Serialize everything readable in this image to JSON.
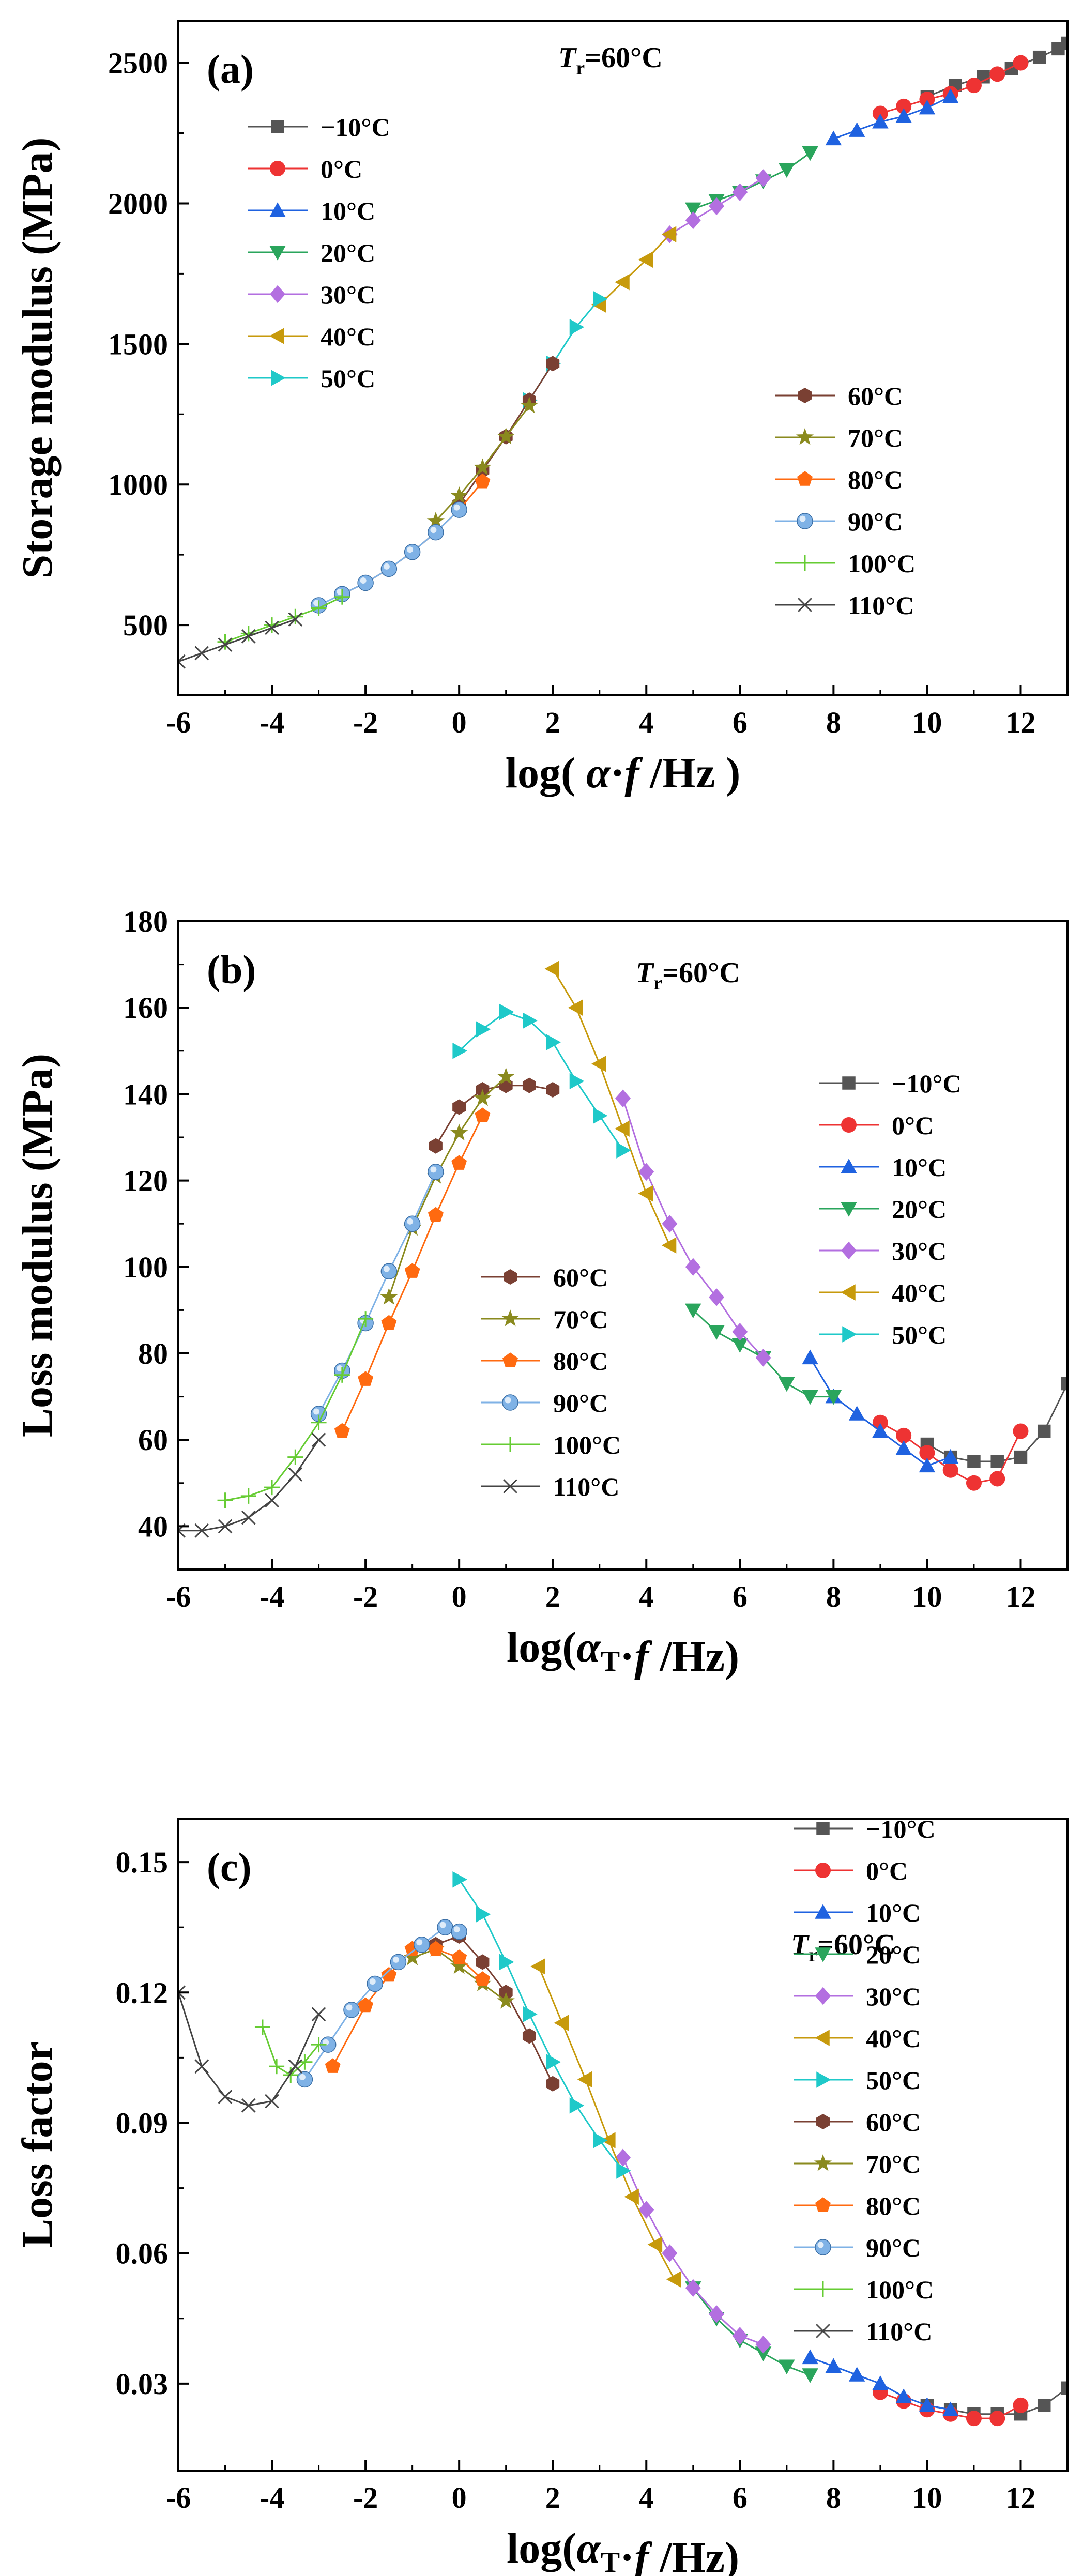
{
  "panels": [
    {
      "panel_label": "(a)",
      "ref_temp": {
        "sym": "T",
        "sub": "r",
        "rest": "=60°C"
      },
      "ylabel": "Storage modulus (MPa)",
      "xlabel": {
        "pre": "log( ",
        "greek": "α",
        "sub": "",
        "mid": "·",
        "ital": "f",
        "post": " /Hz )"
      },
      "x_ticks": [
        "-6",
        "-4",
        "-2",
        "0",
        "2",
        "4",
        "6",
        "8",
        "10",
        "12"
      ],
      "y_ticks": [
        "500",
        "1000",
        "1500",
        "2000",
        "2500"
      ],
      "legend_groups": [
        {
          "pos": "upper-left",
          "entries": [
            "−10°C",
            "0°C",
            "10°C",
            "20°C",
            "30°C",
            "40°C",
            "50°C"
          ]
        },
        {
          "pos": "center-right",
          "entries": [
            "60°C",
            "70°C",
            "80°C",
            "90°C",
            "100°C",
            "110°C"
          ]
        }
      ]
    },
    {
      "panel_label": "(b)",
      "ref_temp": {
        "sym": "T",
        "sub": "r",
        "rest": "=60°C"
      },
      "ylabel": "Loss modulus (MPa)",
      "xlabel": {
        "pre": "log(",
        "greek": "α",
        "sub": "T",
        "mid": "·",
        "ital": "f",
        "post": " /Hz)"
      },
      "x_ticks": [
        "-6",
        "-4",
        "-2",
        "0",
        "2",
        "4",
        "6",
        "8",
        "10",
        "12"
      ],
      "y_ticks": [
        "40",
        "60",
        "80",
        "100",
        "120",
        "140",
        "160",
        "180"
      ],
      "legend_groups": [
        {
          "pos": "upper-right",
          "entries": [
            "−10°C",
            "0°C",
            "10°C",
            "20°C",
            "30°C",
            "40°C",
            "50°C"
          ]
        },
        {
          "pos": "lower-center",
          "entries": [
            "60°C",
            "70°C",
            "80°C",
            "90°C",
            "100°C",
            "110°C"
          ]
        }
      ]
    },
    {
      "panel_label": "(c)",
      "ref_temp": {
        "sym": "T",
        "sub": "r",
        "rest": "=60°C"
      },
      "ylabel": "Loss factor",
      "xlabel": {
        "pre": "log(",
        "greek": "α",
        "sub": "T",
        "mid": "·",
        "ital": "f",
        "post": " /Hz)"
      },
      "x_ticks": [
        "-6",
        "-4",
        "-2",
        "0",
        "2",
        "4",
        "6",
        "8",
        "10",
        "12"
      ],
      "y_ticks": [
        "0.03",
        "0.06",
        "0.09",
        "0.12",
        "0.15"
      ],
      "legend_groups": [
        {
          "pos": "right",
          "entries": [
            "−10°C",
            "0°C",
            "10°C",
            "20°C",
            "30°C",
            "40°C",
            "50°C",
            "60°C",
            "70°C",
            "80°C",
            "90°C",
            "100°C",
            "110°C"
          ]
        }
      ]
    }
  ],
  "series_style": {
    "−10°C": {
      "color": "#555555",
      "marker": "square"
    },
    "0°C": {
      "color": "#ee3333",
      "marker": "circle"
    },
    "10°C": {
      "color": "#1f62e0",
      "marker": "triangle-up"
    },
    "20°C": {
      "color": "#2aa55c",
      "marker": "triangle-down"
    },
    "30°C": {
      "color": "#b36fe0",
      "marker": "diamond"
    },
    "40°C": {
      "color": "#c79a0c",
      "marker": "triangle-left"
    },
    "50°C": {
      "color": "#1fc9c9",
      "marker": "triangle-right"
    },
    "60°C": {
      "color": "#7a4033",
      "marker": "hexagon"
    },
    "70°C": {
      "color": "#8a8a1e",
      "marker": "star"
    },
    "80°C": {
      "color": "#ff6a10",
      "marker": "pentagon"
    },
    "90°C": {
      "color": "#7fb2e6",
      "marker": "sphere"
    },
    "100°C": {
      "color": "#66cc33",
      "marker": "plus"
    },
    "110°C": {
      "color": "#444444",
      "marker": "cross"
    }
  },
  "chart_data": [
    {
      "type": "scatter",
      "xlabel": "log( α·f /Hz )",
      "ylabel": "Storage modulus (MPa)",
      "xlim": [
        -6,
        13
      ],
      "ylim": [
        250,
        2650
      ],
      "series": [
        {
          "name": "−10°C",
          "x": [
            10,
            10.6,
            11.2,
            11.8,
            12.4,
            12.8,
            13
          ],
          "y": [
            2380,
            2420,
            2450,
            2480,
            2520,
            2550,
            2570
          ]
        },
        {
          "name": "0°C",
          "x": [
            9,
            9.5,
            10,
            10.5,
            11,
            11.5,
            12
          ],
          "y": [
            2320,
            2345,
            2370,
            2390,
            2420,
            2460,
            2500
          ]
        },
        {
          "name": "10°C",
          "x": [
            8,
            8.5,
            9,
            9.5,
            10,
            10.5
          ],
          "y": [
            2230,
            2260,
            2290,
            2310,
            2340,
            2380
          ]
        },
        {
          "name": "20°C",
          "x": [
            5,
            5.5,
            6,
            6.5,
            7,
            7.5
          ],
          "y": [
            1980,
            2010,
            2040,
            2080,
            2120,
            2180
          ]
        },
        {
          "name": "30°C",
          "x": [
            4.5,
            5,
            5.5,
            6,
            6.5
          ],
          "y": [
            1890,
            1940,
            1990,
            2040,
            2090
          ]
        },
        {
          "name": "40°C",
          "x": [
            3,
            3.5,
            4,
            4.5
          ],
          "y": [
            1640,
            1720,
            1800,
            1890
          ]
        },
        {
          "name": "50°C",
          "x": [
            1.5,
            2,
            2.5,
            3
          ],
          "y": [
            1300,
            1430,
            1560,
            1660
          ]
        },
        {
          "name": "60°C",
          "x": [
            0,
            0.5,
            1,
            1.5,
            2
          ],
          "y": [
            930,
            1050,
            1170,
            1300,
            1430
          ]
        },
        {
          "name": "70°C",
          "x": [
            -0.5,
            0,
            0.5,
            1,
            1.5
          ],
          "y": [
            870,
            960,
            1060,
            1170,
            1280
          ]
        },
        {
          "name": "80°C",
          "x": [
            -2.5,
            -2,
            -1.5,
            -1,
            -0.5,
            0,
            0.5
          ],
          "y": [
            610,
            650,
            700,
            760,
            830,
            910,
            1010
          ]
        },
        {
          "name": "90°C",
          "x": [
            -3,
            -2.5,
            -2,
            -1.5,
            -1,
            -0.5,
            0
          ],
          "y": [
            570,
            610,
            650,
            700,
            760,
            830,
            910
          ]
        },
        {
          "name": "100°C",
          "x": [
            -5,
            -4.5,
            -4,
            -3.5,
            -3,
            -2.5
          ],
          "y": [
            440,
            470,
            500,
            530,
            560,
            600
          ]
        },
        {
          "name": "110°C",
          "x": [
            -6,
            -5.5,
            -5,
            -4.5,
            -4,
            -3.5
          ],
          "y": [
            370,
            400,
            430,
            460,
            490,
            520
          ]
        }
      ]
    },
    {
      "type": "scatter",
      "xlabel": "log(αT·f /Hz)",
      "ylabel": "Loss modulus (MPa)",
      "xlim": [
        -6,
        13
      ],
      "ylim": [
        30,
        180
      ],
      "series": [
        {
          "name": "−10°C",
          "x": [
            10,
            10.5,
            11,
            11.5,
            12,
            12.5,
            13
          ],
          "y": [
            59,
            56,
            55,
            55,
            56,
            62,
            73
          ]
        },
        {
          "name": "0°C",
          "x": [
            9,
            9.5,
            10,
            10.5,
            11,
            11.5,
            12
          ],
          "y": [
            64,
            61,
            57,
            53,
            50,
            51,
            62
          ]
        },
        {
          "name": "10°C",
          "x": [
            7.5,
            8,
            8.5,
            9,
            9.5,
            10,
            10.5
          ],
          "y": [
            79,
            70,
            66,
            62,
            58,
            54,
            56
          ]
        },
        {
          "name": "20°C",
          "x": [
            5,
            5.5,
            6,
            6.5,
            7,
            7.5,
            8
          ],
          "y": [
            90,
            85,
            82,
            79,
            73,
            70,
            70
          ]
        },
        {
          "name": "30°C",
          "x": [
            3.5,
            4,
            4.5,
            5,
            5.5,
            6,
            6.5
          ],
          "y": [
            139,
            122,
            110,
            100,
            93,
            85,
            79
          ]
        },
        {
          "name": "40°C",
          "x": [
            2,
            2.5,
            3,
            3.5,
            4,
            4.5
          ],
          "y": [
            169,
            160,
            147,
            132,
            117,
            105
          ]
        },
        {
          "name": "50°C",
          "x": [
            0,
            0.5,
            1,
            1.5,
            2,
            2.5,
            3,
            3.5
          ],
          "y": [
            150,
            155,
            159,
            157,
            152,
            143,
            135,
            127
          ]
        },
        {
          "name": "60°C",
          "x": [
            -0.5,
            0,
            0.5,
            1,
            1.5,
            2
          ],
          "y": [
            128,
            137,
            141,
            142,
            142,
            141
          ]
        },
        {
          "name": "70°C",
          "x": [
            -1.5,
            -1,
            -0.5,
            0,
            0.5,
            1
          ],
          "y": [
            93,
            109,
            121,
            131,
            139,
            144
          ]
        },
        {
          "name": "80°C",
          "x": [
            -2.5,
            -2,
            -1.5,
            -1,
            -0.5,
            0,
            0.5
          ],
          "y": [
            62,
            74,
            87,
            99,
            112,
            124,
            135
          ]
        },
        {
          "name": "90°C",
          "x": [
            -3,
            -2.5,
            -2,
            -1.5,
            -1,
            -0.5
          ],
          "y": [
            66,
            76,
            87,
            99,
            110,
            122
          ]
        },
        {
          "name": "100°C",
          "x": [
            -5,
            -4.5,
            -4,
            -3.5,
            -3,
            -2.5,
            -2
          ],
          "y": [
            46,
            47,
            49,
            56,
            64,
            75,
            88
          ]
        },
        {
          "name": "110°C",
          "x": [
            -6,
            -5.5,
            -5,
            -4.5,
            -4,
            -3.5,
            -3
          ],
          "y": [
            39,
            39,
            40,
            42,
            46,
            52,
            60
          ]
        }
      ]
    },
    {
      "type": "scatter",
      "xlabel": "log(αT·f /Hz)",
      "ylabel": "Loss factor",
      "xlim": [
        -6,
        13
      ],
      "ylim": [
        0.01,
        0.16
      ],
      "series": [
        {
          "name": "−10°C",
          "x": [
            10,
            10.5,
            11,
            11.5,
            12,
            12.5,
            13
          ],
          "y": [
            0.025,
            0.024,
            0.023,
            0.023,
            0.023,
            0.025,
            0.029
          ]
        },
        {
          "name": "0°C",
          "x": [
            9,
            9.5,
            10,
            10.5,
            11,
            11.5,
            12
          ],
          "y": [
            0.028,
            0.026,
            0.024,
            0.023,
            0.022,
            0.022,
            0.025
          ]
        },
        {
          "name": "10°C",
          "x": [
            7.5,
            8,
            8.5,
            9,
            9.5,
            10,
            10.5
          ],
          "y": [
            0.036,
            0.034,
            0.032,
            0.03,
            0.027,
            0.025,
            0.024
          ]
        },
        {
          "name": "20°C",
          "x": [
            5,
            5.5,
            6,
            6.5,
            7,
            7.5
          ],
          "y": [
            0.052,
            0.045,
            0.04,
            0.037,
            0.034,
            0.032
          ]
        },
        {
          "name": "30°C",
          "x": [
            3.5,
            4,
            4.5,
            5,
            5.5,
            6,
            6.5
          ],
          "y": [
            0.082,
            0.07,
            0.06,
            0.052,
            0.046,
            0.041,
            0.039
          ]
        },
        {
          "name": "40°C",
          "x": [
            1.7,
            2.2,
            2.7,
            3.2,
            3.7,
            4.2,
            4.6
          ],
          "y": [
            0.126,
            0.113,
            0.1,
            0.086,
            0.073,
            0.062,
            0.054
          ]
        },
        {
          "name": "50°C",
          "x": [
            0,
            0.5,
            1,
            1.5,
            2,
            2.5,
            3,
            3.5
          ],
          "y": [
            0.146,
            0.138,
            0.127,
            0.115,
            0.104,
            0.094,
            0.086,
            0.079
          ]
        },
        {
          "name": "60°C",
          "x": [
            -0.5,
            0,
            0.5,
            1,
            1.5,
            2
          ],
          "y": [
            0.131,
            0.133,
            0.127,
            0.12,
            0.11,
            0.099
          ]
        },
        {
          "name": "70°C",
          "x": [
            -1,
            -0.5,
            0,
            0.5,
            1
          ],
          "y": [
            0.128,
            0.13,
            0.126,
            0.122,
            0.118
          ]
        },
        {
          "name": "80°C",
          "x": [
            -2.7,
            -2,
            -1.5,
            -1,
            -0.5,
            0,
            0.5
          ],
          "y": [
            0.103,
            0.117,
            0.124,
            0.13,
            0.13,
            0.128,
            0.123
          ]
        },
        {
          "name": "90°C",
          "x": [
            -3.3,
            -2.8,
            -2.3,
            -1.8,
            -1.3,
            -0.8,
            -0.3,
            0
          ],
          "y": [
            0.1,
            0.108,
            0.116,
            0.122,
            0.127,
            0.131,
            0.135,
            0.134
          ]
        },
        {
          "name": "100°C",
          "x": [
            -4.2,
            -3.9,
            -3.6,
            -3.3,
            -3
          ],
          "y": [
            0.112,
            0.103,
            0.101,
            0.104,
            0.108
          ]
        },
        {
          "name": "110°C",
          "x": [
            -6,
            -5.5,
            -5,
            -4.5,
            -4,
            -3.5,
            -3
          ],
          "y": [
            0.12,
            0.103,
            0.096,
            0.094,
            0.095,
            0.103,
            0.115
          ]
        }
      ]
    }
  ]
}
